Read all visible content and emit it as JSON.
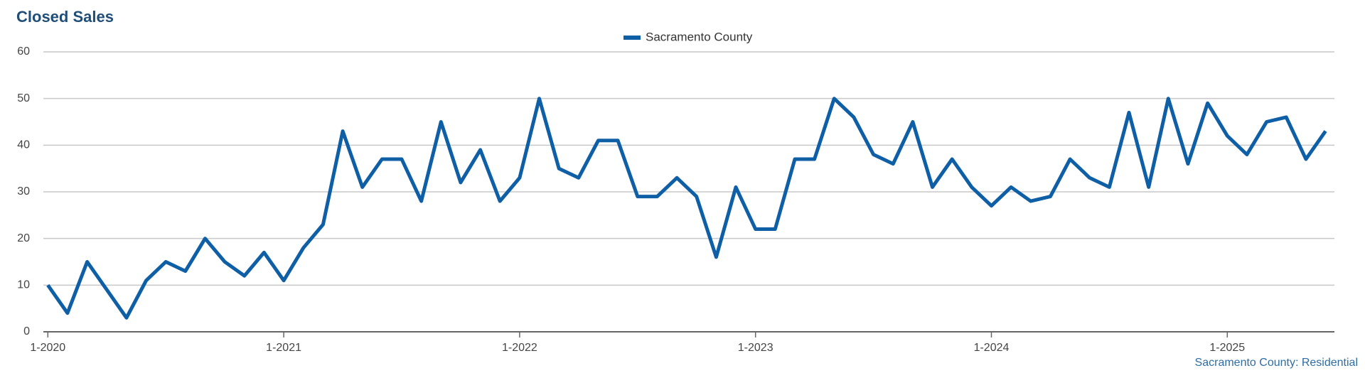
{
  "chart_data": {
    "type": "line",
    "title": "Closed Sales",
    "footer": "Sacramento County: Residential",
    "categories": [
      "1-2020",
      null,
      null,
      null,
      null,
      null,
      null,
      null,
      null,
      null,
      null,
      null,
      "1-2021",
      null,
      null,
      null,
      null,
      null,
      null,
      null,
      null,
      null,
      null,
      null,
      "1-2022",
      null,
      null,
      null,
      null,
      null,
      null,
      null,
      null,
      null,
      null,
      null,
      "1-2023",
      null,
      null,
      null,
      null,
      null,
      null,
      null,
      null,
      null,
      null,
      null,
      "1-2024",
      null,
      null,
      null,
      null,
      null,
      null,
      null,
      null,
      null,
      null,
      null,
      "1-2025",
      null,
      null,
      null,
      null,
      null
    ],
    "series": [
      {
        "name": "Sacramento County",
        "color": "#0f5fa6",
        "values": [
          10,
          4,
          15,
          9,
          3,
          11,
          15,
          13,
          20,
          15,
          12,
          17,
          11,
          18,
          23,
          43,
          31,
          37,
          37,
          28,
          45,
          32,
          39,
          28,
          33,
          50,
          35,
          33,
          41,
          41,
          29,
          29,
          33,
          29,
          16,
          31,
          22,
          22,
          37,
          37,
          50,
          46,
          38,
          36,
          45,
          31,
          37,
          31,
          27,
          31,
          28,
          29,
          37,
          33,
          31,
          47,
          31,
          50,
          36,
          49,
          42,
          38,
          45,
          46,
          37,
          43
        ]
      }
    ],
    "ylim": [
      0,
      60
    ],
    "yticks": [
      0,
      10,
      20,
      30,
      40,
      50,
      60
    ],
    "grid": true,
    "legend": "top"
  }
}
